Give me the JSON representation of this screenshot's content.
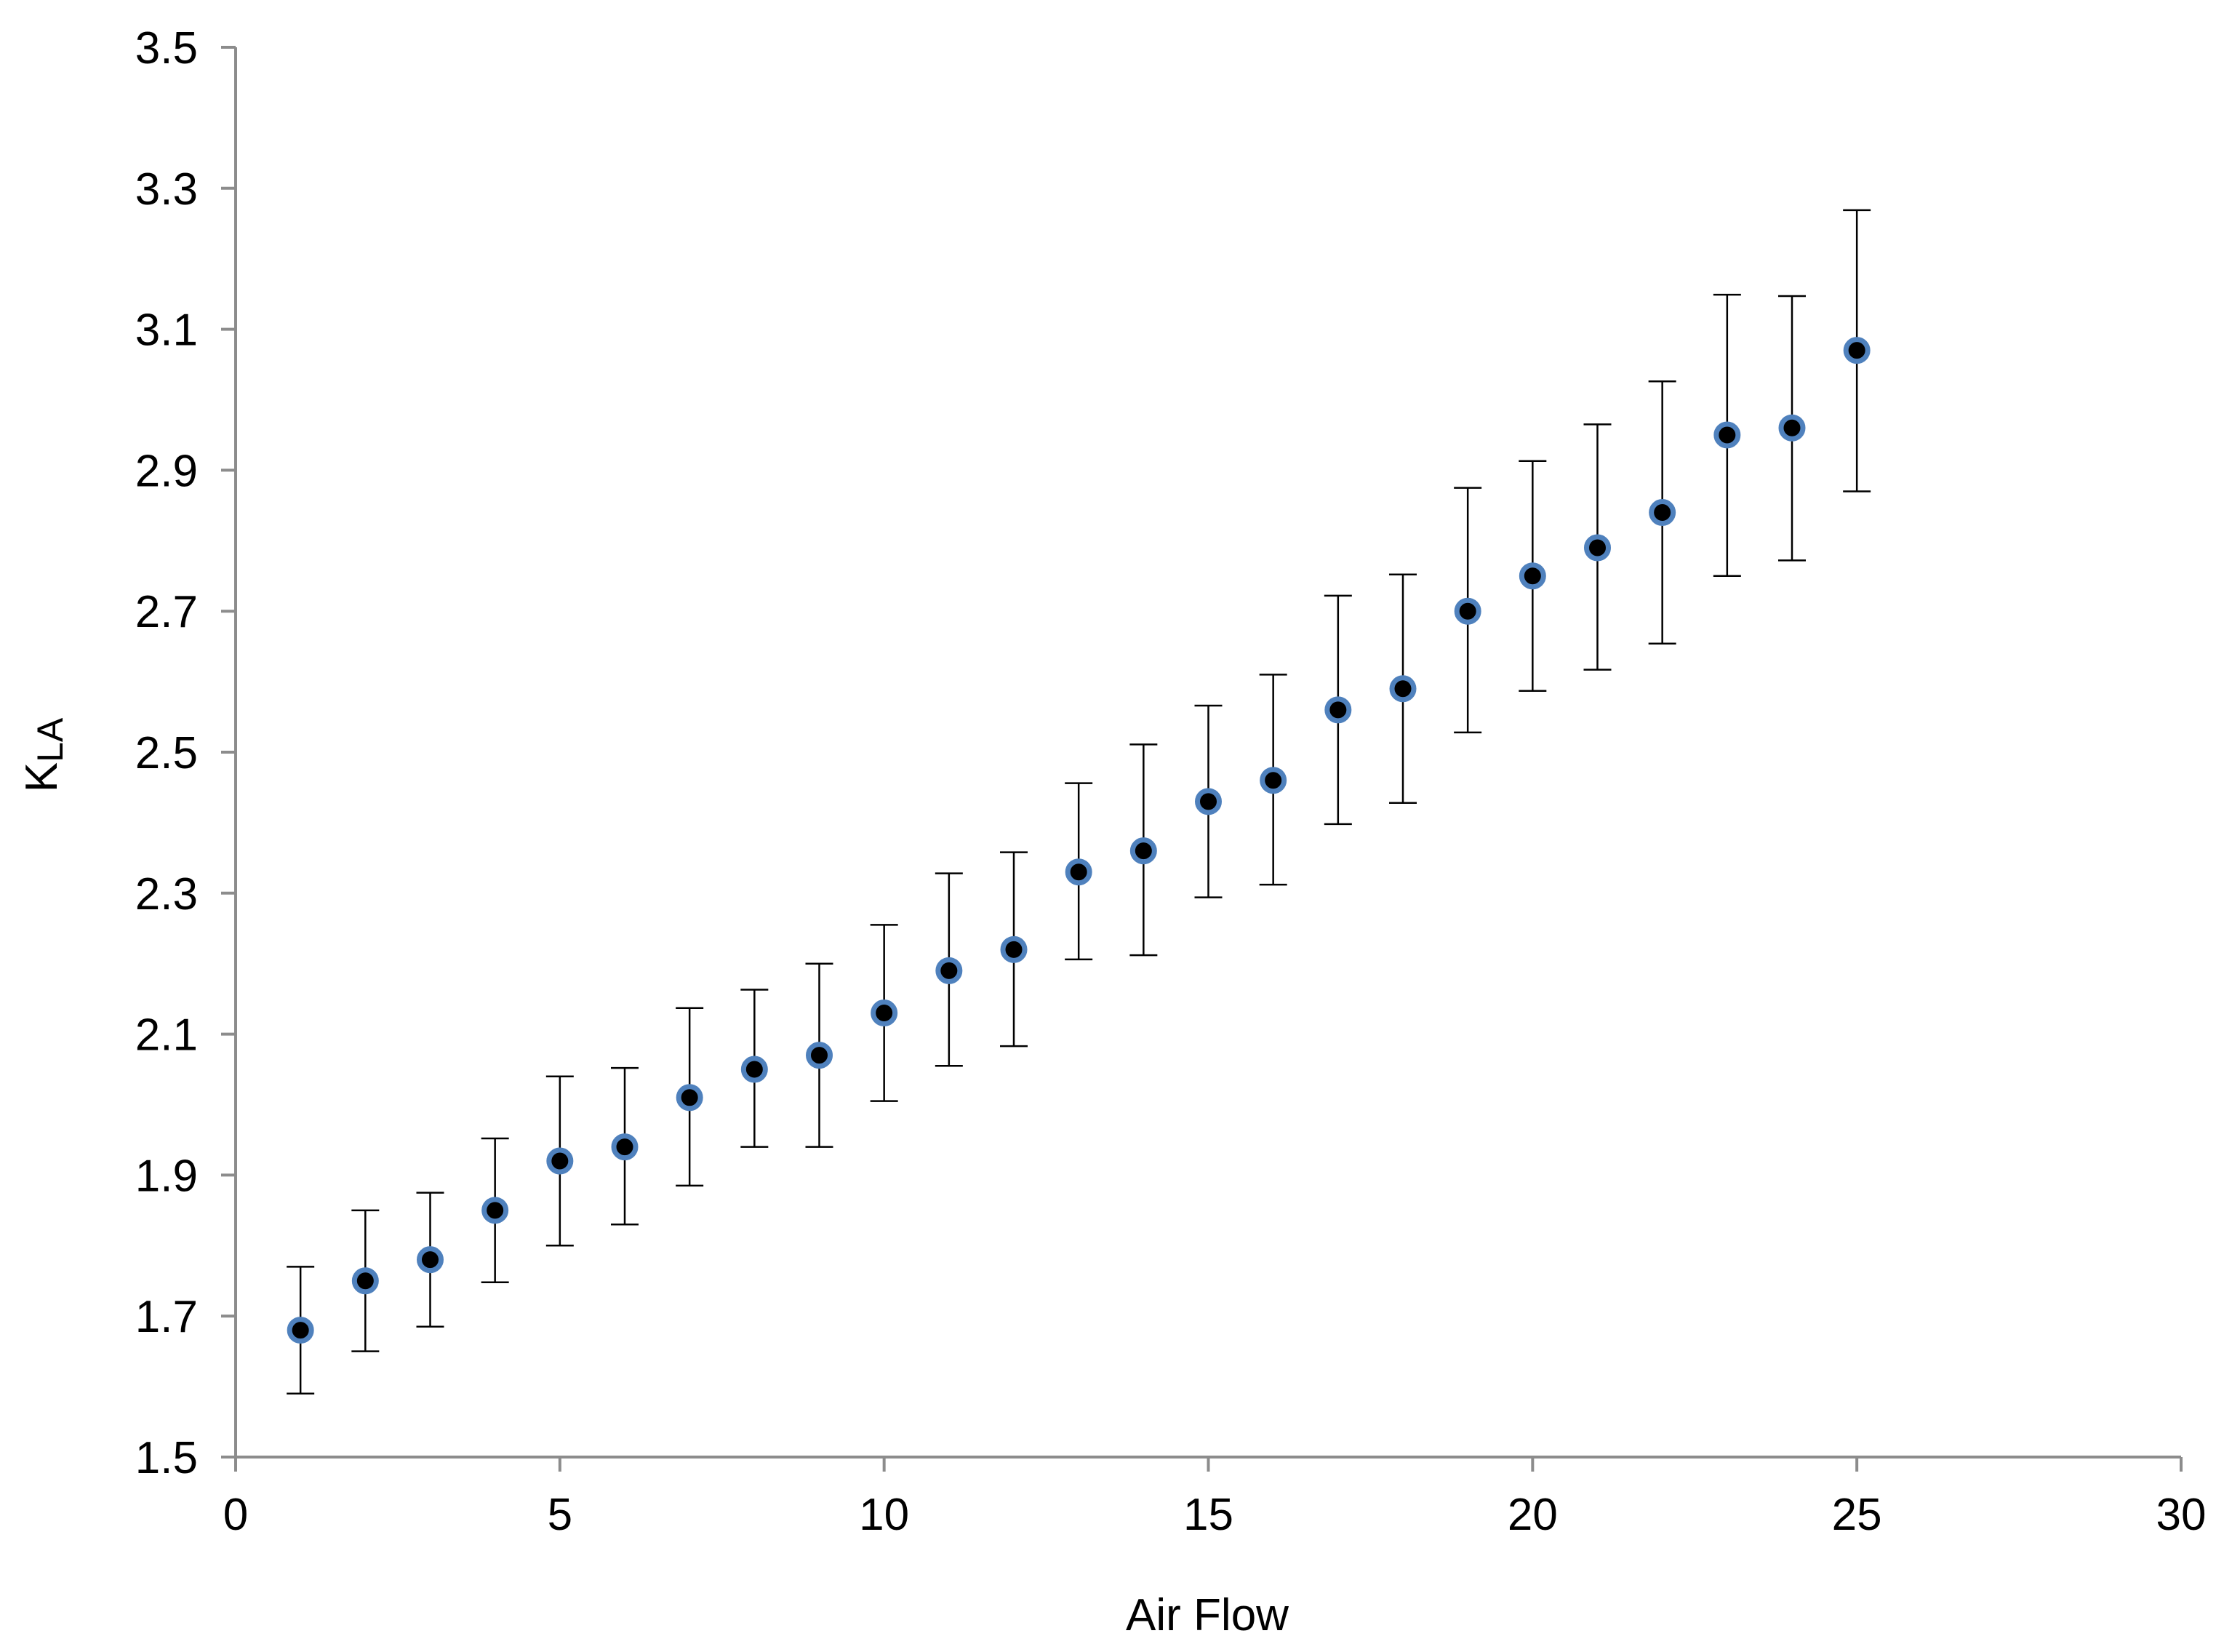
{
  "chart_data": {
    "type": "scatter",
    "xlabel": "Air Flow",
    "ylabel": "KLA",
    "ylabel_main": "K",
    "ylabel_sub": "LA",
    "xlim": [
      0,
      30
    ],
    "ylim": [
      1.5,
      3.5
    ],
    "x_ticks": [
      0,
      5,
      10,
      15,
      20,
      25,
      30
    ],
    "y_ticks": [
      1.5,
      1.7,
      1.9,
      2.1,
      2.3,
      2.5,
      2.7,
      2.9,
      3.1,
      3.3,
      3.5
    ],
    "x_tick_labels": [
      "0",
      "5",
      "10",
      "15",
      "20",
      "25",
      "30"
    ],
    "y_tick_labels": [
      "1.5",
      "1.7",
      "1.9",
      "2.1",
      "2.3",
      "2.5",
      "2.7",
      "2.9",
      "3.1",
      "3.3",
      "3.5"
    ],
    "grid": false,
    "legend": "none",
    "series": [
      {
        "x": [
          1,
          2,
          3,
          4,
          5,
          6,
          7,
          8,
          9,
          10,
          11,
          12,
          13,
          14,
          15,
          16,
          17,
          18,
          19,
          20,
          21,
          22,
          23,
          24,
          25
        ],
        "y": [
          1.68,
          1.75,
          1.78,
          1.85,
          1.92,
          1.94,
          2.01,
          2.05,
          2.07,
          2.13,
          2.19,
          2.22,
          2.33,
          2.36,
          2.43,
          2.46,
          2.56,
          2.59,
          2.7,
          2.75,
          2.79,
          2.84,
          2.95,
          2.96,
          3.07
        ],
        "error_low": [
          1.59,
          1.65,
          1.685,
          1.748,
          1.8,
          1.83,
          1.885,
          1.94,
          1.94,
          2.005,
          2.055,
          2.083,
          2.206,
          2.212,
          2.294,
          2.312,
          2.398,
          2.428,
          2.528,
          2.587,
          2.617,
          2.654,
          2.75,
          2.772,
          2.87
        ],
        "error_high": [
          1.77,
          1.85,
          1.875,
          1.952,
          2.04,
          2.052,
          2.137,
          2.163,
          2.2,
          2.255,
          2.328,
          2.358,
          2.456,
          2.511,
          2.566,
          2.61,
          2.722,
          2.752,
          2.875,
          2.913,
          2.965,
          3.026,
          3.149,
          3.147,
          3.269
        ]
      }
    ]
  },
  "colors": {
    "axis": "#8c8c8c",
    "marker_fill": "#000000",
    "marker_edge": "#4f81bd",
    "error_bar": "#000000",
    "text": "#000000"
  }
}
